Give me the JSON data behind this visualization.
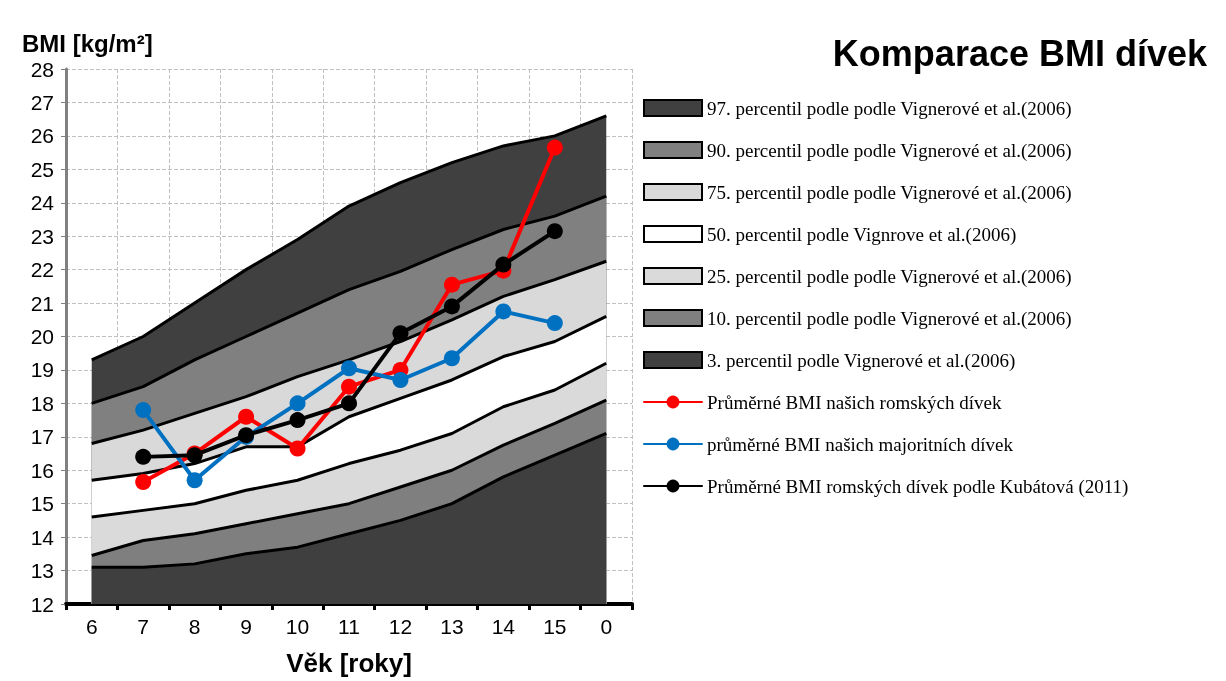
{
  "chart_data": {
    "type": "line",
    "title": "Komparace BMI dívek",
    "ylabel": "BMI [kg/m²]",
    "xlabel": "Věk [roky]",
    "categories": [
      "6",
      "7",
      "8",
      "9",
      "10",
      "11",
      "12",
      "13",
      "14",
      "15",
      "0"
    ],
    "ylim": [
      12,
      28
    ],
    "yticks": [
      12,
      13,
      14,
      15,
      16,
      17,
      18,
      19,
      20,
      21,
      22,
      23,
      24,
      25,
      26,
      27,
      28
    ],
    "grid": true,
    "legend": "right",
    "series": [
      {
        "type": "area",
        "name": "97. percentil podle podle Vignerové et al.(2006)",
        "color": "#404040",
        "values": [
          19.3,
          20.0,
          21.0,
          22.0,
          22.9,
          23.9,
          24.6,
          25.2,
          25.7,
          26.0,
          26.6
        ]
      },
      {
        "type": "area",
        "name": "90. percentil podle podle Vignerové et al.(2006)",
        "color": "#808080",
        "values": [
          18.0,
          18.5,
          19.3,
          20.0,
          20.7,
          21.4,
          21.95,
          22.6,
          23.2,
          23.6,
          24.2
        ]
      },
      {
        "type": "area",
        "name": "75. percentil podle podle Vignerové et al.(2006)",
        "color": "#d9d9d9",
        "values": [
          16.8,
          17.2,
          17.7,
          18.2,
          18.8,
          19.3,
          19.85,
          20.5,
          21.2,
          21.7,
          22.25
        ]
      },
      {
        "type": "area",
        "name": "50. percentil podle Vignrove et al.(2006)",
        "color": "#ffffff",
        "values": [
          15.7,
          15.9,
          16.2,
          16.7,
          16.7,
          17.6,
          18.15,
          18.7,
          19.4,
          19.85,
          20.6
        ]
      },
      {
        "type": "area",
        "name": "25. percentil podle podle Vignerové et al.(2006)",
        "color": "#dadada",
        "values": [
          14.6,
          14.8,
          15.0,
          15.4,
          15.7,
          16.2,
          16.6,
          17.1,
          17.9,
          18.4,
          19.2
        ]
      },
      {
        "type": "area",
        "name": "10. percentil podle podle Vignerové et al.(2006)",
        "color": "#7f7f7f",
        "values": [
          13.45,
          13.9,
          14.1,
          14.4,
          14.7,
          15.0,
          15.5,
          16.0,
          16.75,
          17.4,
          18.1
        ]
      },
      {
        "type": "area",
        "name": "3. percentil podle Vignerové et al.(2006)",
        "color": "#3f3f3f",
        "values": [
          13.1,
          13.1,
          13.2,
          13.5,
          13.7,
          14.1,
          14.5,
          15.0,
          15.8,
          16.45,
          17.1
        ]
      },
      {
        "name": "Průměrné BMI našich romských dívek",
        "marker": "circle",
        "color": "#ff0000",
        "values": [
          null,
          15.65,
          16.5,
          17.6,
          16.65,
          18.5,
          19.0,
          21.55,
          21.97,
          25.65,
          null
        ]
      },
      {
        "name": "průměrné BMI našich majoritních dívek",
        "marker": "circle",
        "color": "#0070c0",
        "values": [
          null,
          17.8,
          15.7,
          17.0,
          18.0,
          19.05,
          18.7,
          19.35,
          20.75,
          20.4,
          null
        ]
      },
      {
        "name": "Průměrné BMI romských dívek podle Kubátová (2011)",
        "marker": "circle",
        "color": "#000000",
        "values": [
          null,
          16.4,
          16.45,
          17.05,
          17.5,
          18.0,
          20.1,
          20.9,
          22.15,
          23.15,
          null
        ]
      }
    ]
  }
}
